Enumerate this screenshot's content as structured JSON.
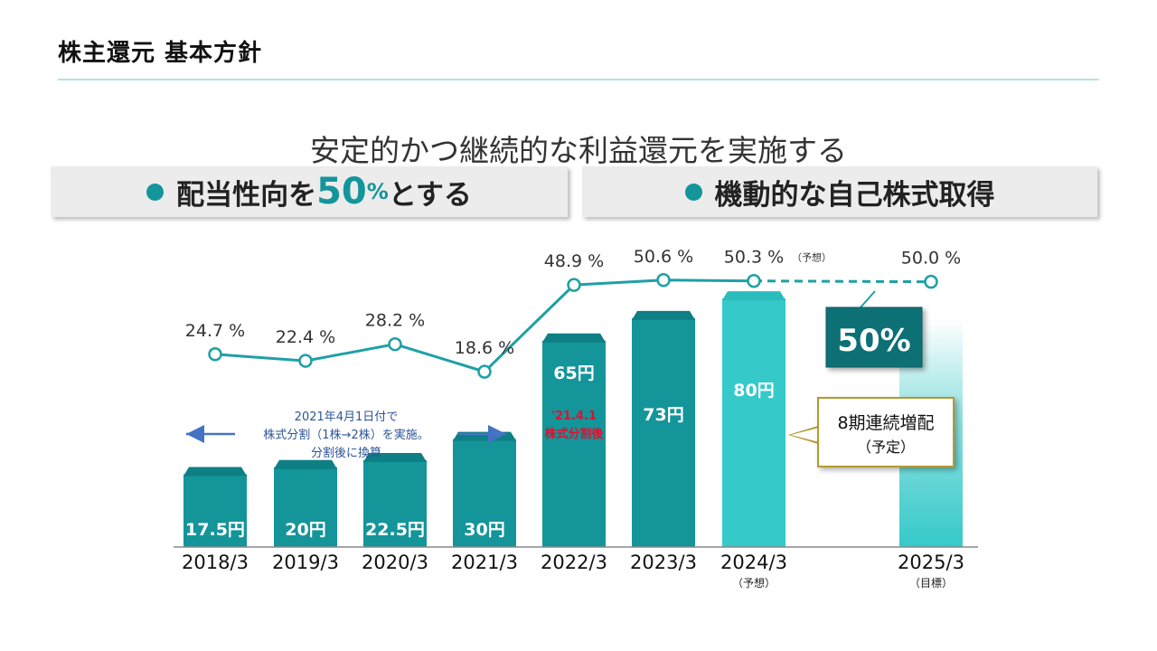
{
  "header": {
    "title": "株主還元 基本方針"
  },
  "subtitle": "安定的かつ継続的な利益還元を実施する",
  "panels": {
    "left": {
      "pre": "配当性向を",
      "num": "50",
      "pct": "%",
      "post": "とする"
    },
    "right": {
      "label": "機動的な自己株式取得"
    }
  },
  "colors": {
    "teal": "#13959a",
    "teal_dark": "#0d7f85",
    "teal_light": "#35c9c9",
    "line": "#1fa0a5",
    "arrow_blue": "#4472c4",
    "red": "#e0102f",
    "gold": "#b49a2e"
  },
  "notes": {
    "split": [
      "2021年4月1日付で",
      "株式分割（1株→2株）を実施。",
      "分割後に換算"
    ],
    "split_date": "'21.4.1",
    "split_after": "株式分割後",
    "target_badge": "50%",
    "callout": [
      "8期連続増配",
      "（予定）"
    ]
  },
  "chart_data": {
    "type": "bar",
    "categories": [
      "2018/3",
      "2019/3",
      "2020/3",
      "2021/3",
      "2022/3",
      "2023/3",
      "2024/3",
      "2025/3"
    ],
    "category_sublabels": [
      "",
      "",
      "",
      "",
      "",
      "",
      "（予想）",
      "（目標）"
    ],
    "series": [
      {
        "name": "配当",
        "values": [
          17.5,
          20,
          22.5,
          30,
          65,
          73,
          80,
          null
        ],
        "labels": [
          "17.5円",
          "20円",
          "22.5円",
          "30円",
          "65円",
          "73円",
          "80円",
          ""
        ]
      },
      {
        "name": "配当性向",
        "type": "line",
        "values": [
          24.7,
          22.4,
          28.2,
          18.6,
          48.9,
          50.6,
          50.3,
          50.0
        ],
        "labels": [
          "24.7 %",
          "22.4 %",
          "28.2 %",
          "18.6 %",
          "48.9 %",
          "50.6 %",
          "50.3 %",
          "50.0 %"
        ],
        "label_suffixes": [
          "",
          "",
          "",
          "",
          "",
          "",
          "（予想）",
          ""
        ],
        "dashed_from_index": 6
      }
    ],
    "ylim_bar": [
      0,
      90
    ],
    "ylim_line": [
      0,
      60
    ]
  }
}
